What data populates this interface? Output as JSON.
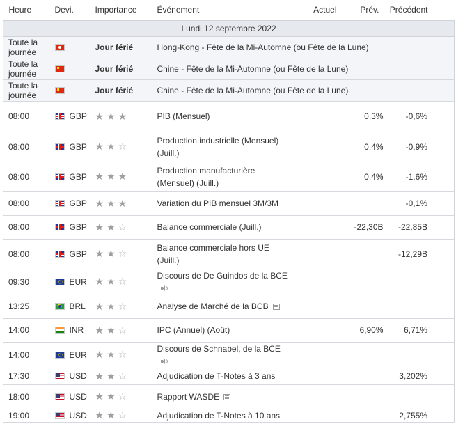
{
  "headers": {
    "time": "Heure",
    "currency": "Devi.",
    "importance": "Importance",
    "event": "Événement",
    "actual": "Actuel",
    "forecast": "Prév.",
    "previous": "Précédent"
  },
  "date_label": "Lundi 12 septembre 2022",
  "holidays": [
    {
      "time": "Toute la journée",
      "flag": "hk-flag-icon",
      "label": "Jour férié",
      "event": "Hong-Kong - Fête de la Mi-Automne (ou Fête de la Lune)"
    },
    {
      "time": "Toute la journée",
      "flag": "cn-flag-icon",
      "label": "Jour férié",
      "event": "Chine - Fête de la Mi-Automne (ou Fête de la Lune)"
    },
    {
      "time": "Toute la journée",
      "flag": "cn-flag-icon",
      "label": "Jour férié",
      "event": "Chine - Fête de la Mi-Automne (ou Fête de la Lune)"
    }
  ],
  "events": [
    {
      "time": "08:00",
      "flag": "gb-flag-icon",
      "currency": "GBP",
      "importance": 3,
      "event": "PIB (Mensuel)",
      "icon": "",
      "actual": "",
      "forecast": "0,3%",
      "previous": "-0,6%"
    },
    {
      "time": "08:00",
      "flag": "gb-flag-icon",
      "currency": "GBP",
      "importance": 2,
      "event": "Production industrielle (Mensuel) (Juill.)",
      "icon": "",
      "actual": "",
      "forecast": "0,4%",
      "previous": "-0,9%"
    },
    {
      "time": "08:00",
      "flag": "gb-flag-icon",
      "currency": "GBP",
      "importance": 3,
      "event": "Production manufacturière (Mensuel) (Juill.)",
      "icon": "",
      "actual": "",
      "forecast": "0,4%",
      "previous": "-1,6%"
    },
    {
      "time": "08:00",
      "flag": "gb-flag-icon",
      "currency": "GBP",
      "importance": 3,
      "event": "Variation du PIB mensuel 3M/3M",
      "icon": "",
      "actual": "",
      "forecast": "",
      "previous": "-0,1%"
    },
    {
      "time": "08:00",
      "flag": "gb-flag-icon",
      "currency": "GBP",
      "importance": 2,
      "event": "Balance commerciale (Juill.)",
      "icon": "",
      "actual": "",
      "forecast": "-22,30B",
      "previous": "-22,85B"
    },
    {
      "time": "08:00",
      "flag": "gb-flag-icon",
      "currency": "GBP",
      "importance": 2,
      "event": "Balance commerciale hors UE (Juill.)",
      "icon": "",
      "actual": "",
      "forecast": "",
      "previous": "-12,29B"
    },
    {
      "time": "09:30",
      "flag": "eu-flag-icon",
      "currency": "EUR",
      "importance": 2,
      "event": "Discours de De Guindos de la BCE",
      "icon": "speaker-icon",
      "actual": "",
      "forecast": "",
      "previous": ""
    },
    {
      "time": "13:25",
      "flag": "br-flag-icon",
      "currency": "BRL",
      "importance": 2,
      "event": "Analyse de Marché de la BCB",
      "icon": "document-icon",
      "actual": "",
      "forecast": "",
      "previous": ""
    },
    {
      "time": "14:00",
      "flag": "in-flag-icon",
      "currency": "INR",
      "importance": 2,
      "event": "IPC (Annuel) (Août)",
      "icon": "",
      "actual": "",
      "forecast": "6,90%",
      "previous": "6,71%"
    },
    {
      "time": "14:00",
      "flag": "eu-flag-icon",
      "currency": "EUR",
      "importance": 2,
      "event": "Discours de Schnabel, de la BCE",
      "icon": "speaker-icon",
      "actual": "",
      "forecast": "",
      "previous": ""
    },
    {
      "time": "17:30",
      "flag": "us-flag-icon",
      "currency": "USD",
      "importance": 2,
      "event": "Adjudication de T-Notes à 3 ans",
      "icon": "",
      "actual": "",
      "forecast": "",
      "previous": "3,202%"
    },
    {
      "time": "18:00",
      "flag": "us-flag-icon",
      "currency": "USD",
      "importance": 2,
      "event": "Rapport WASDE",
      "icon": "document-icon",
      "actual": "",
      "forecast": "",
      "previous": ""
    },
    {
      "time": "19:00",
      "flag": "us-flag-icon",
      "currency": "USD",
      "importance": 2,
      "event": "Adjudication de T-Notes à 10 ans",
      "icon": "",
      "actual": "",
      "forecast": "",
      "previous": "2,755%"
    }
  ]
}
